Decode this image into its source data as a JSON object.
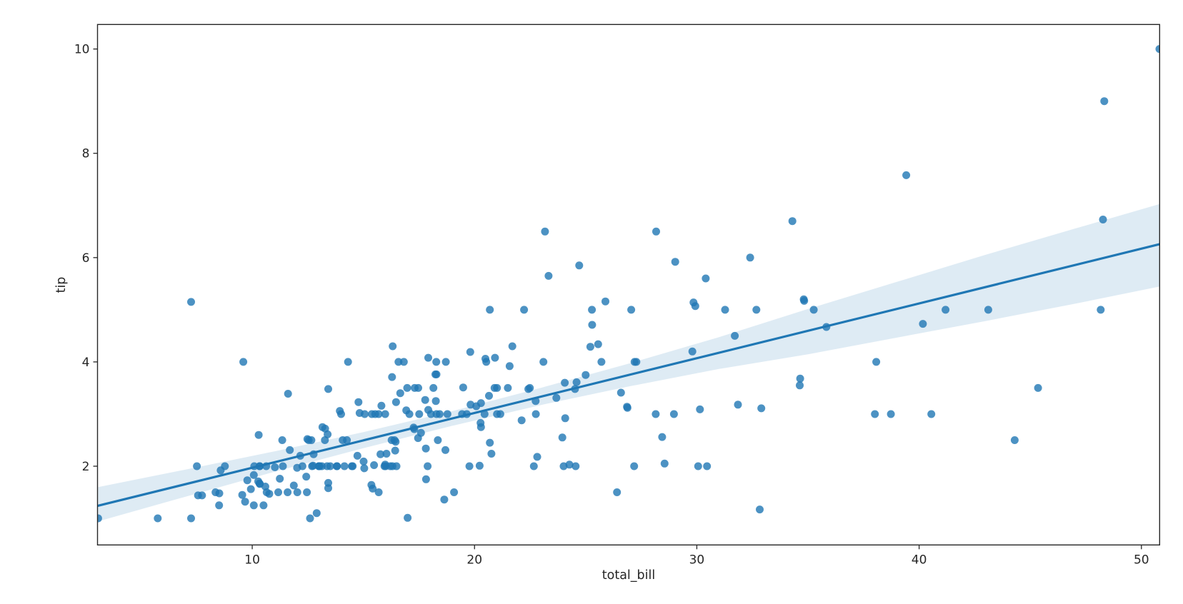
{
  "figure": {
    "background": "#ffffff"
  },
  "chart_data": {
    "type": "scatter",
    "title": "",
    "xlabel": "total_bill",
    "ylabel": "tip",
    "xlim": [
      3.04,
      50.82
    ],
    "ylim": [
      0.49,
      10.47
    ],
    "x_ticks": [
      10,
      20,
      30,
      40,
      50
    ],
    "y_ticks": [
      2,
      4,
      6,
      8,
      10
    ],
    "grid": false,
    "legend": null,
    "colors": {
      "point": "#1f77b4",
      "line": "#1f77b4",
      "band": "#1f77b4",
      "spine": "#262626",
      "text": "#262626"
    },
    "point_alpha": 0.8,
    "band_alpha": 0.15,
    "regression": {
      "slope": 0.105025,
      "intercept": 0.92027,
      "x_start": 3.07,
      "x_end": 50.81
    },
    "ci_band": [
      [
        3.07,
        0.942,
        1.599
      ],
      [
        7.0,
        1.415,
        1.935
      ],
      [
        11.0,
        1.895,
        2.285
      ],
      [
        15.0,
        2.345,
        2.655
      ],
      [
        19.0,
        2.775,
        3.055
      ],
      [
        23.0,
        3.175,
        3.505
      ],
      [
        27.0,
        3.535,
        3.975
      ],
      [
        31.0,
        3.865,
        4.475
      ],
      [
        35.0,
        4.145,
        5.015
      ],
      [
        39.0,
        4.465,
        5.535
      ],
      [
        43.0,
        4.785,
        6.055
      ],
      [
        47.0,
        5.115,
        6.555
      ],
      [
        50.81,
        5.445,
        7.025
      ]
    ],
    "points": [
      [
        16.99,
        1.01
      ],
      [
        10.34,
        1.66
      ],
      [
        21.01,
        3.5
      ],
      [
        23.68,
        3.31
      ],
      [
        24.59,
        3.61
      ],
      [
        25.29,
        4.71
      ],
      [
        8.77,
        2.0
      ],
      [
        26.88,
        3.12
      ],
      [
        15.04,
        1.96
      ],
      [
        14.78,
        3.23
      ],
      [
        10.27,
        1.71
      ],
      [
        35.26,
        5.0
      ],
      [
        15.42,
        1.57
      ],
      [
        18.43,
        3.0
      ],
      [
        14.83,
        3.02
      ],
      [
        21.58,
        3.92
      ],
      [
        10.33,
        1.67
      ],
      [
        16.29,
        3.71
      ],
      [
        16.97,
        3.5
      ],
      [
        20.65,
        3.35
      ],
      [
        17.92,
        4.08
      ],
      [
        20.29,
        2.75
      ],
      [
        15.77,
        2.23
      ],
      [
        39.42,
        7.58
      ],
      [
        19.82,
        3.18
      ],
      [
        17.81,
        2.34
      ],
      [
        13.37,
        2.0
      ],
      [
        12.69,
        2.0
      ],
      [
        21.7,
        4.3
      ],
      [
        19.65,
        3.0
      ],
      [
        9.55,
        1.45
      ],
      [
        18.35,
        2.5
      ],
      [
        15.06,
        3.0
      ],
      [
        20.69,
        2.45
      ],
      [
        17.78,
        3.27
      ],
      [
        24.06,
        3.6
      ],
      [
        16.31,
        2.0
      ],
      [
        16.93,
        3.07
      ],
      [
        18.69,
        2.31
      ],
      [
        31.27,
        5.0
      ],
      [
        16.04,
        2.24
      ],
      [
        17.46,
        2.54
      ],
      [
        13.94,
        3.06
      ],
      [
        9.68,
        1.32
      ],
      [
        30.4,
        5.6
      ],
      [
        18.29,
        3.0
      ],
      [
        22.23,
        5.0
      ],
      [
        32.4,
        6.0
      ],
      [
        28.55,
        2.05
      ],
      [
        18.04,
        3.0
      ],
      [
        12.54,
        2.5
      ],
      [
        10.29,
        2.6
      ],
      [
        34.81,
        5.2
      ],
      [
        9.94,
        1.56
      ],
      [
        25.56,
        4.34
      ],
      [
        19.49,
        3.51
      ],
      [
        38.01,
        3.0
      ],
      [
        26.41,
        1.5
      ],
      [
        11.24,
        1.76
      ],
      [
        48.27,
        6.73
      ],
      [
        20.29,
        3.21
      ],
      [
        13.81,
        2.0
      ],
      [
        11.02,
        1.98
      ],
      [
        18.29,
        3.76
      ],
      [
        17.59,
        2.64
      ],
      [
        20.08,
        3.15
      ],
      [
        16.45,
        2.47
      ],
      [
        3.07,
        1.0
      ],
      [
        20.23,
        2.01
      ],
      [
        15.01,
        2.09
      ],
      [
        12.02,
        1.97
      ],
      [
        17.07,
        3.0
      ],
      [
        26.86,
        3.14
      ],
      [
        25.28,
        5.0
      ],
      [
        14.73,
        2.2
      ],
      [
        10.51,
        1.25
      ],
      [
        17.92,
        3.08
      ],
      [
        27.2,
        4.0
      ],
      [
        22.76,
        3.0
      ],
      [
        17.29,
        2.71
      ],
      [
        19.44,
        3.0
      ],
      [
        16.66,
        3.4
      ],
      [
        10.07,
        1.83
      ],
      [
        32.68,
        5.0
      ],
      [
        15.98,
        2.03
      ],
      [
        34.83,
        5.17
      ],
      [
        13.03,
        2.0
      ],
      [
        18.28,
        4.0
      ],
      [
        24.71,
        5.85
      ],
      [
        21.16,
        3.0
      ],
      [
        28.97,
        3.0
      ],
      [
        22.49,
        3.5
      ],
      [
        5.75,
        1.0
      ],
      [
        16.32,
        4.3
      ],
      [
        22.75,
        3.25
      ],
      [
        40.17,
        4.73
      ],
      [
        27.28,
        4.0
      ],
      [
        12.03,
        1.5
      ],
      [
        21.01,
        3.0
      ],
      [
        12.46,
        1.5
      ],
      [
        11.35,
        2.5
      ],
      [
        15.38,
        3.0
      ],
      [
        44.3,
        2.5
      ],
      [
        22.42,
        3.48
      ],
      [
        20.92,
        4.08
      ],
      [
        15.36,
        1.64
      ],
      [
        20.49,
        4.06
      ],
      [
        25.21,
        4.29
      ],
      [
        18.24,
        3.76
      ],
      [
        14.31,
        4.0
      ],
      [
        14.0,
        3.0
      ],
      [
        7.25,
        1.0
      ],
      [
        38.07,
        4.0
      ],
      [
        23.95,
        2.55
      ],
      [
        25.71,
        4.0
      ],
      [
        17.31,
        3.5
      ],
      [
        29.93,
        5.07
      ],
      [
        10.65,
        1.5
      ],
      [
        12.43,
        1.8
      ],
      [
        24.08,
        2.92
      ],
      [
        11.69,
        2.31
      ],
      [
        13.42,
        1.68
      ],
      [
        14.26,
        2.5
      ],
      [
        15.95,
        2.0
      ],
      [
        12.48,
        2.52
      ],
      [
        29.8,
        4.2
      ],
      [
        8.52,
        1.48
      ],
      [
        14.52,
        2.0
      ],
      [
        11.38,
        2.0
      ],
      [
        22.82,
        2.18
      ],
      [
        19.08,
        1.5
      ],
      [
        20.27,
        2.83
      ],
      [
        11.17,
        1.5
      ],
      [
        12.26,
        2.0
      ],
      [
        18.26,
        3.25
      ],
      [
        8.51,
        1.25
      ],
      [
        10.33,
        2.0
      ],
      [
        14.15,
        2.0
      ],
      [
        16.0,
        2.0
      ],
      [
        13.16,
        2.75
      ],
      [
        17.47,
        3.5
      ],
      [
        34.3,
        6.7
      ],
      [
        41.19,
        5.0
      ],
      [
        27.05,
        5.0
      ],
      [
        16.43,
        2.3
      ],
      [
        8.35,
        1.5
      ],
      [
        18.64,
        1.36
      ],
      [
        11.87,
        1.63
      ],
      [
        9.78,
        1.73
      ],
      [
        7.51,
        2.0
      ],
      [
        14.07,
        2.5
      ],
      [
        13.13,
        2.0
      ],
      [
        17.26,
        2.74
      ],
      [
        24.55,
        2.0
      ],
      [
        19.77,
        2.0
      ],
      [
        29.85,
        5.14
      ],
      [
        48.17,
        5.0
      ],
      [
        25.0,
        3.75
      ],
      [
        13.39,
        2.61
      ],
      [
        16.49,
        2.0
      ],
      [
        21.5,
        3.5
      ],
      [
        12.66,
        2.5
      ],
      [
        16.21,
        2.0
      ],
      [
        13.81,
        2.0
      ],
      [
        17.51,
        3.0
      ],
      [
        24.52,
        3.48
      ],
      [
        20.76,
        2.24
      ],
      [
        31.71,
        4.5
      ],
      [
        10.59,
        1.61
      ],
      [
        10.63,
        2.0
      ],
      [
        50.81,
        10.0
      ],
      [
        15.81,
        3.16
      ],
      [
        7.25,
        5.15
      ],
      [
        31.85,
        3.18
      ],
      [
        16.82,
        4.0
      ],
      [
        32.9,
        3.11
      ],
      [
        17.89,
        2.0
      ],
      [
        14.48,
        2.0
      ],
      [
        9.6,
        4.0
      ],
      [
        34.63,
        3.55
      ],
      [
        34.65,
        3.68
      ],
      [
        23.33,
        5.65
      ],
      [
        45.35,
        3.5
      ],
      [
        23.17,
        6.5
      ],
      [
        40.55,
        3.0
      ],
      [
        20.69,
        5.0
      ],
      [
        20.9,
        3.5
      ],
      [
        30.46,
        2.0
      ],
      [
        18.15,
        3.5
      ],
      [
        23.1,
        4.0
      ],
      [
        15.69,
        1.5
      ],
      [
        19.81,
        4.19
      ],
      [
        28.44,
        2.56
      ],
      [
        15.48,
        2.02
      ],
      [
        16.58,
        4.0
      ],
      [
        7.56,
        1.44
      ],
      [
        10.34,
        2.0
      ],
      [
        43.11,
        5.0
      ],
      [
        13.0,
        2.0
      ],
      [
        13.51,
        2.0
      ],
      [
        18.71,
        4.0
      ],
      [
        12.74,
        2.01
      ],
      [
        13.0,
        2.0
      ],
      [
        16.4,
        2.5
      ],
      [
        20.53,
        4.0
      ],
      [
        16.47,
        3.23
      ],
      [
        26.59,
        3.41
      ],
      [
        38.73,
        3.0
      ],
      [
        24.27,
        2.03
      ],
      [
        12.76,
        2.23
      ],
      [
        30.06,
        2.0
      ],
      [
        25.89,
        5.16
      ],
      [
        48.33,
        9.0
      ],
      [
        13.27,
        2.5
      ],
      [
        28.17,
        6.5
      ],
      [
        12.9,
        1.1
      ],
      [
        28.15,
        3.0
      ],
      [
        11.59,
        1.5
      ],
      [
        7.74,
        1.44
      ],
      [
        30.14,
        3.09
      ],
      [
        12.16,
        2.2
      ],
      [
        13.42,
        3.48
      ],
      [
        8.58,
        1.92
      ],
      [
        15.98,
        3.0
      ],
      [
        13.42,
        1.58
      ],
      [
        16.27,
        2.5
      ],
      [
        10.09,
        2.0
      ],
      [
        20.45,
        3.0
      ],
      [
        13.28,
        2.72
      ],
      [
        22.12,
        2.88
      ],
      [
        24.01,
        2.0
      ],
      [
        15.69,
        3.0
      ],
      [
        11.61,
        3.39
      ],
      [
        10.77,
        1.47
      ],
      [
        15.53,
        3.0
      ],
      [
        10.07,
        1.25
      ],
      [
        12.6,
        1.0
      ],
      [
        32.83,
        1.17
      ],
      [
        35.83,
        4.67
      ],
      [
        29.03,
        5.92
      ],
      [
        27.18,
        2.0
      ],
      [
        22.67,
        2.0
      ],
      [
        17.82,
        1.75
      ],
      [
        18.78,
        3.0
      ]
    ]
  }
}
